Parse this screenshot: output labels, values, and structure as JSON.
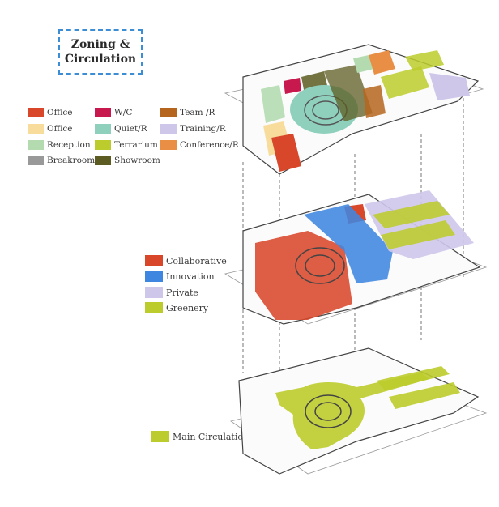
{
  "title": {
    "line1": "Zoning &",
    "line2": "Circulation"
  },
  "legend_rooms": [
    {
      "label": "Office",
      "color": "#d9472b"
    },
    {
      "label": "W/C",
      "color": "#c8194e"
    },
    {
      "label": "Team /R",
      "color": "#b5651d"
    },
    {
      "label": "Office",
      "color": "#f7dc9c"
    },
    {
      "label": "Quiet/R",
      "color": "#8fd0bd"
    },
    {
      "label": "Training/R",
      "color": "#cfc7ea"
    },
    {
      "label": "Reception",
      "color": "#b4dbb0"
    },
    {
      "label": "Terrarium",
      "color": "#bccc2c"
    },
    {
      "label": "Conference/R",
      "color": "#e88e45"
    },
    {
      "label": "Breakroom",
      "color": "#999999"
    },
    {
      "label": "Showroom",
      "color": "#5c5c22"
    }
  ],
  "legend_zones": [
    {
      "label": "Collaborative",
      "color": "#d9472b"
    },
    {
      "label": "Innovation",
      "color": "#3f86e0"
    },
    {
      "label": "Private",
      "color": "#cfc7ea"
    },
    {
      "label": "Greenery",
      "color": "#bccc2c"
    }
  ],
  "legend_circulation": [
    {
      "label": "Main Circulation",
      "color": "#bccc2c"
    }
  ]
}
